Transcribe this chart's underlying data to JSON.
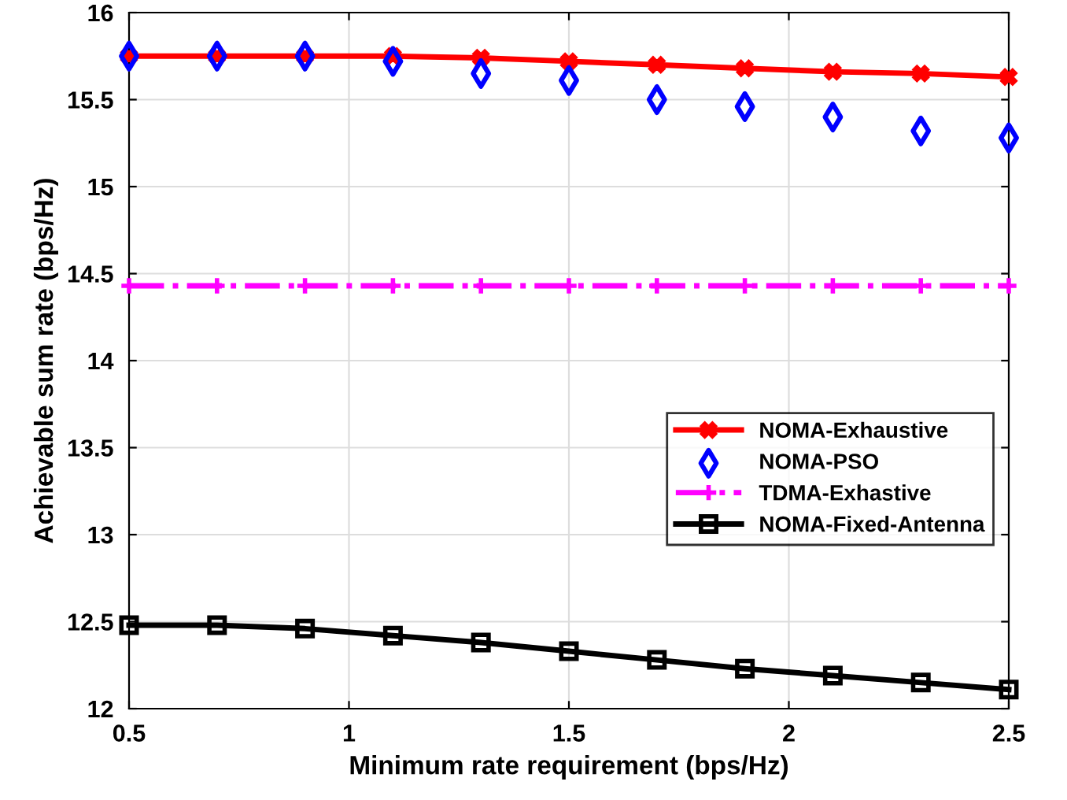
{
  "chart_data": {
    "type": "line",
    "xlabel": "Minimum rate requirement (bps/Hz)",
    "ylabel": "Achievable sum rate (bps/Hz)",
    "x": [
      0.5,
      0.7,
      0.9,
      1.1,
      1.3,
      1.5,
      1.7,
      1.9,
      2.1,
      2.3,
      2.5
    ],
    "series": [
      {
        "name": "NOMA-Exhaustive",
        "color": "#ff0000",
        "marker": "cross",
        "line_style": "solid",
        "values": [
          15.75,
          15.75,
          15.75,
          15.75,
          15.74,
          15.72,
          15.7,
          15.68,
          15.66,
          15.65,
          15.63
        ]
      },
      {
        "name": "NOMA-PSO",
        "type": "scatter",
        "color": "#0000ff",
        "marker": "diamond",
        "values": [
          15.75,
          15.75,
          15.75,
          15.72,
          15.65,
          15.61,
          15.5,
          15.46,
          15.4,
          15.32,
          15.28
        ]
      },
      {
        "name": "TDMA-Exhastive",
        "color": "#ff00ff",
        "marker": "cross",
        "line_style": "dashdot",
        "values": [
          14.43,
          14.43,
          14.43,
          14.43,
          14.43,
          14.43,
          14.43,
          14.43,
          14.43,
          14.43,
          14.43
        ]
      },
      {
        "name": "NOMA-Fixed-Antenna",
        "color": "#000000",
        "marker": "square",
        "line_style": "solid",
        "values": [
          12.48,
          12.48,
          12.46,
          12.42,
          12.38,
          12.33,
          12.28,
          12.23,
          12.19,
          12.15,
          12.11
        ]
      }
    ],
    "xlim": [
      0.5,
      2.5
    ],
    "xticks": [
      0.5,
      1,
      1.5,
      2,
      2.5
    ],
    "ylim": [
      12,
      16
    ],
    "yticks": [
      12,
      12.5,
      13,
      13.5,
      14,
      14.5,
      15,
      15.5,
      16
    ],
    "grid": true,
    "legend": "right"
  }
}
